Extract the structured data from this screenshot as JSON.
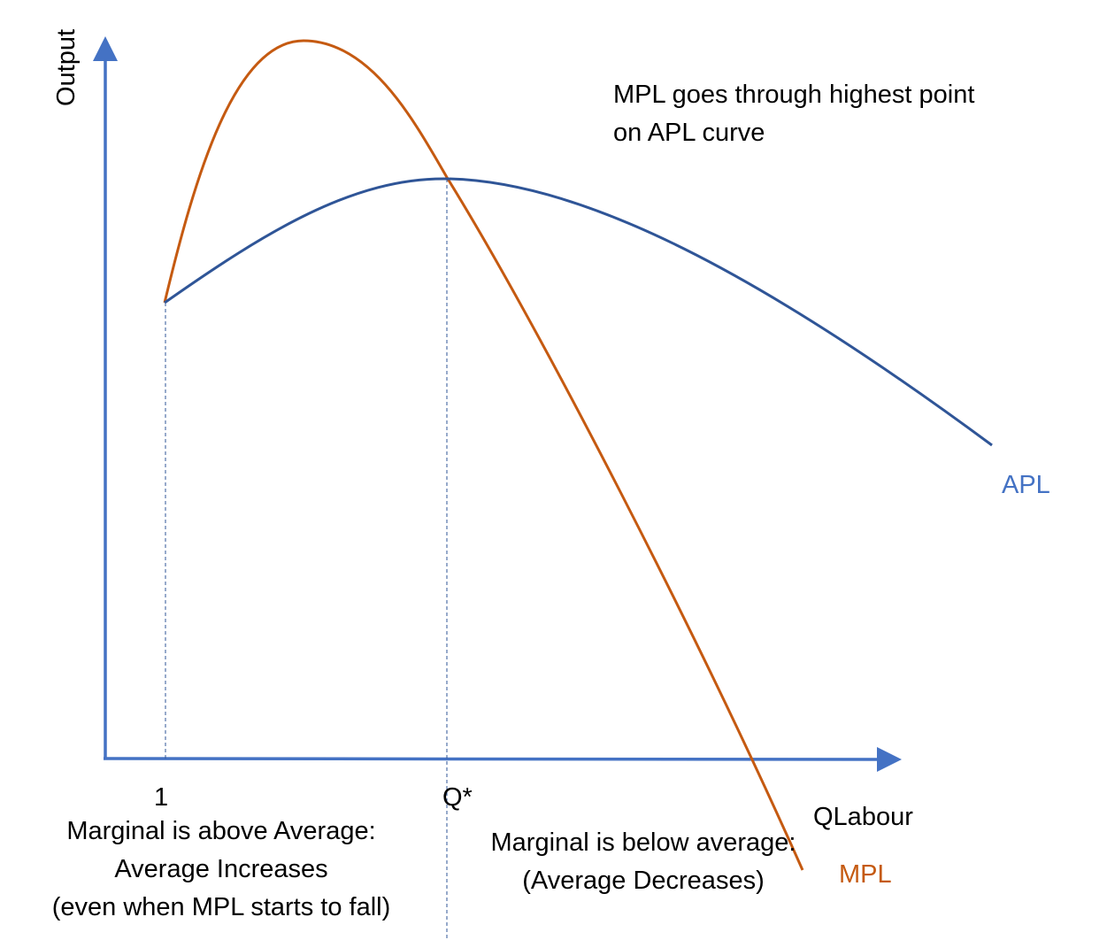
{
  "diagram": {
    "y_axis_label": "Output",
    "x_axis_label": "QLabour",
    "tick_1": "1",
    "tick_q": "Q*",
    "apl_label": "APL",
    "mpl_label": "MPL",
    "note_top": [
      "MPL goes through highest point",
      "on APL curve"
    ],
    "note_left": [
      "Marginal is above Average:",
      "Average Increases",
      "(even when MPL starts to fall)"
    ],
    "note_right": [
      "Marginal is below average:",
      "(Average Decreases)"
    ],
    "colors": {
      "axis": "#4472C4",
      "apl": "#2F5597",
      "mpl": "#C55A11",
      "guide": "#4472C4"
    }
  }
}
